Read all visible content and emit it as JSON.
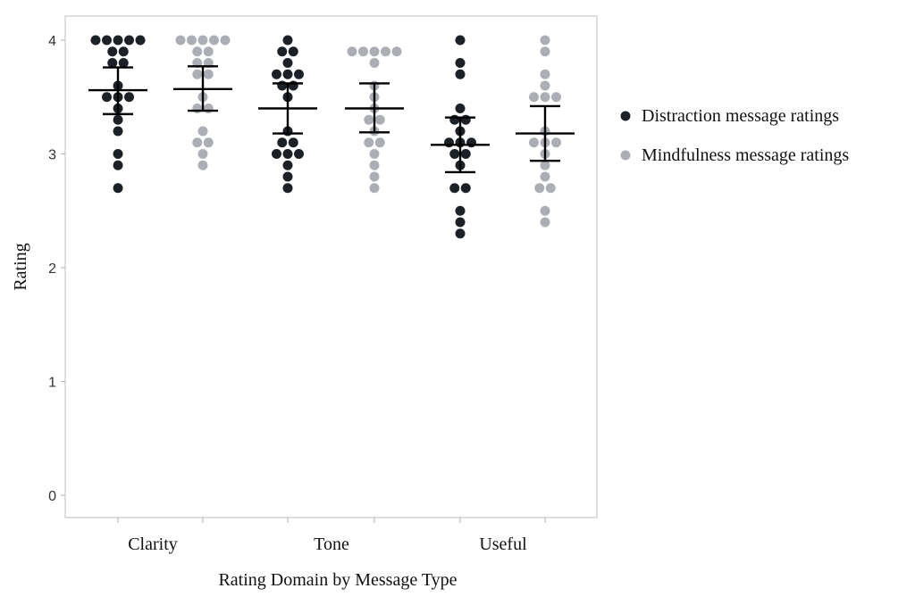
{
  "chart_data": {
    "type": "scatter",
    "subtype": "dot-strip-plot-with-mean-and-error-bars",
    "title": "",
    "xlabel": "Rating Domain by Message Type",
    "ylabel": "Rating",
    "ylim": [
      0,
      4
    ],
    "yticks": [
      "0",
      "1",
      "2",
      "3",
      "4"
    ],
    "categories": [
      "Clarity",
      "Tone",
      "Useful"
    ],
    "grid": false,
    "legend_position": "right",
    "series": [
      {
        "name": "Distraction message ratings",
        "color": "#1c2027",
        "groups": [
          {
            "category": "Clarity",
            "mean": 3.56,
            "ci_low": 3.35,
            "ci_high": 3.76,
            "values": [
              4.0,
              4.0,
              4.0,
              4.0,
              4.0,
              3.9,
              3.9,
              3.8,
              3.8,
              3.6,
              3.5,
              3.5,
              3.5,
              3.4,
              3.3,
              3.2,
              3.0,
              2.9,
              2.7
            ]
          },
          {
            "category": "Tone",
            "mean": 3.4,
            "ci_low": 3.18,
            "ci_high": 3.62,
            "values": [
              4.0,
              3.9,
              3.9,
              3.8,
              3.7,
              3.7,
              3.7,
              3.6,
              3.6,
              3.5,
              3.2,
              3.1,
              3.1,
              3.0,
              3.0,
              3.0,
              2.9,
              2.8,
              2.7
            ]
          },
          {
            "category": "Useful",
            "mean": 3.08,
            "ci_low": 2.84,
            "ci_high": 3.32,
            "values": [
              4.0,
              3.8,
              3.7,
              3.4,
              3.3,
              3.3,
              3.2,
              3.1,
              3.1,
              3.1,
              3.0,
              3.0,
              2.9,
              2.7,
              2.7,
              2.5,
              2.4,
              2.3
            ]
          }
        ]
      },
      {
        "name": "Mindfulness message ratings",
        "color": "#abafb5",
        "groups": [
          {
            "category": "Clarity",
            "mean": 3.57,
            "ci_low": 3.38,
            "ci_high": 3.77,
            "values": [
              4.0,
              4.0,
              4.0,
              4.0,
              4.0,
              3.9,
              3.9,
              3.8,
              3.8,
              3.7,
              3.7,
              3.5,
              3.4,
              3.4,
              3.2,
              3.1,
              3.1,
              3.0,
              2.9
            ]
          },
          {
            "category": "Tone",
            "mean": 3.4,
            "ci_low": 3.19,
            "ci_high": 3.62,
            "values": [
              3.9,
              3.9,
              3.9,
              3.9,
              3.9,
              3.8,
              3.6,
              3.5,
              3.4,
              3.3,
              3.3,
              3.2,
              3.1,
              3.1,
              3.0,
              2.9,
              2.8,
              2.7
            ]
          },
          {
            "category": "Useful",
            "mean": 3.18,
            "ci_low": 2.94,
            "ci_high": 3.42,
            "values": [
              4.0,
              3.9,
              3.7,
              3.6,
              3.5,
              3.5,
              3.5,
              3.2,
              3.1,
              3.1,
              3.1,
              3.0,
              2.9,
              2.8,
              2.7,
              2.7,
              2.5,
              2.4
            ]
          }
        ]
      }
    ]
  }
}
